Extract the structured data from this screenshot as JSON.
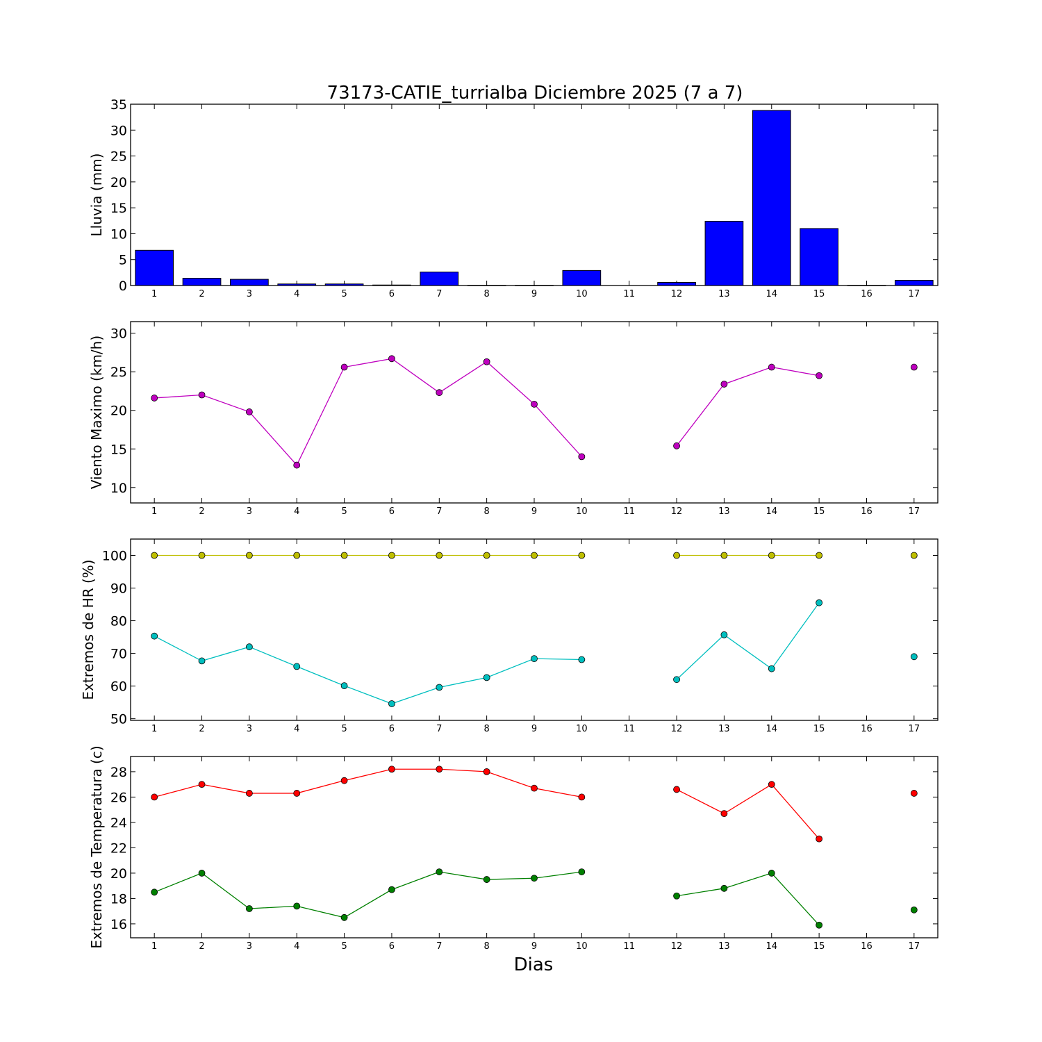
{
  "title": "73173-CATIE_turrialba Diciembre 2025  (7 a 7)",
  "xlabel": "Dias",
  "chart_data": [
    {
      "type": "bar",
      "ylabel": "Lluvia (mm)",
      "ylim": [
        0,
        35
      ],
      "yticks": [
        0,
        5,
        10,
        15,
        20,
        25,
        30,
        35
      ],
      "x": [
        1,
        2,
        3,
        4,
        5,
        6,
        7,
        8,
        9,
        10,
        11,
        12,
        13,
        14,
        15,
        16,
        17
      ],
      "values": [
        6.8,
        1.4,
        1.2,
        0.3,
        0.3,
        0.1,
        2.6,
        0.0,
        0.0,
        2.9,
        null,
        0.6,
        12.4,
        33.8,
        11.0,
        0.0,
        1.0
      ],
      "color": "#0000ff"
    },
    {
      "type": "line",
      "ylabel": "Viento Maximo (km/h)",
      "ylim": [
        8,
        31.5
      ],
      "yticks": [
        10,
        15,
        20,
        25,
        30
      ],
      "x": [
        1,
        2,
        3,
        4,
        5,
        6,
        7,
        8,
        9,
        10,
        11,
        12,
        13,
        14,
        15,
        16,
        17
      ],
      "series": [
        {
          "values": [
            21.6,
            22.0,
            19.8,
            12.9,
            25.6,
            26.7,
            22.3,
            26.3,
            20.8,
            14.0,
            null,
            15.4,
            23.4,
            25.6,
            24.5,
            null,
            25.6
          ],
          "color": "#bf00bf"
        }
      ]
    },
    {
      "type": "line",
      "ylabel": "Extremos de HR (%)",
      "ylim": [
        49.5,
        105
      ],
      "yticks": [
        50,
        60,
        70,
        80,
        90,
        100
      ],
      "x": [
        1,
        2,
        3,
        4,
        5,
        6,
        7,
        8,
        9,
        10,
        11,
        12,
        13,
        14,
        15,
        16,
        17
      ],
      "series": [
        {
          "values": [
            100,
            100,
            100,
            100,
            100,
            100,
            100,
            100,
            100,
            100,
            null,
            100,
            100,
            100,
            100,
            null,
            100
          ],
          "color": "#bfbf00"
        },
        {
          "values": [
            75.3,
            67.7,
            72.0,
            66.0,
            60.1,
            54.6,
            59.6,
            62.6,
            68.4,
            68.1,
            null,
            62.0,
            75.7,
            65.3,
            85.5,
            null,
            69.0
          ],
          "color": "#00bfbf"
        }
      ]
    },
    {
      "type": "line",
      "ylabel": "Extremos de Temperatura (c)",
      "ylim": [
        14.9,
        29.2
      ],
      "yticks": [
        16,
        18,
        20,
        22,
        24,
        26,
        28
      ],
      "x": [
        1,
        2,
        3,
        4,
        5,
        6,
        7,
        8,
        9,
        10,
        11,
        12,
        13,
        14,
        15,
        16,
        17
      ],
      "series": [
        {
          "values": [
            26.0,
            27.0,
            26.3,
            26.3,
            27.3,
            28.2,
            28.2,
            28.0,
            26.7,
            26.0,
            null,
            26.6,
            24.7,
            27.0,
            22.7,
            null,
            26.3
          ],
          "color": "#ff0000"
        },
        {
          "values": [
            18.5,
            20.0,
            17.2,
            17.4,
            16.5,
            18.7,
            20.1,
            19.5,
            19.6,
            20.1,
            null,
            18.2,
            18.8,
            20.0,
            15.9,
            null,
            17.1
          ],
          "color": "#008000"
        }
      ]
    }
  ]
}
